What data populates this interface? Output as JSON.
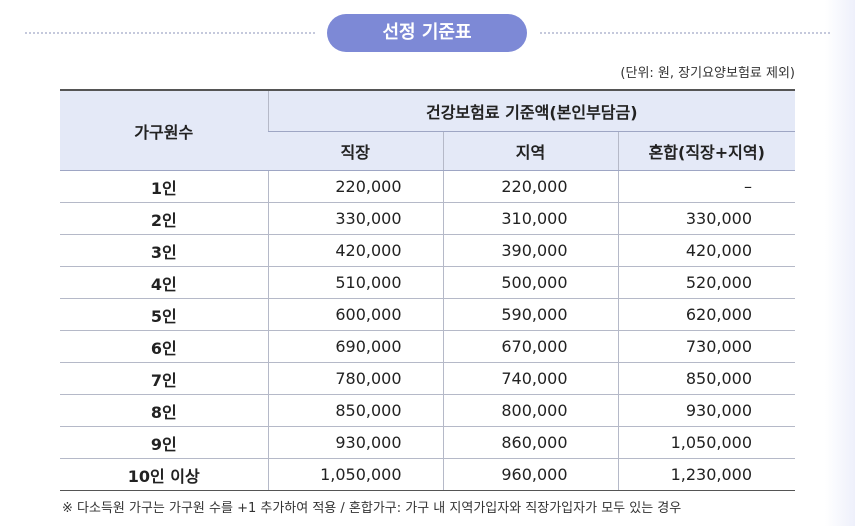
{
  "title": "선정 기준표",
  "unit_note": "(단위: 원, 장기요양보험료 제외)",
  "table": {
    "header": {
      "household": "가구원수",
      "group": "건강보험료 기준액(본인부담금)",
      "columns": [
        "직장",
        "지역",
        "혼합(직장+지역)"
      ]
    },
    "rows": [
      [
        "1인",
        "220,000",
        "220,000",
        "–"
      ],
      [
        "2인",
        "330,000",
        "310,000",
        "330,000"
      ],
      [
        "3인",
        "420,000",
        "390,000",
        "420,000"
      ],
      [
        "4인",
        "510,000",
        "500,000",
        "520,000"
      ],
      [
        "5인",
        "600,000",
        "590,000",
        "620,000"
      ],
      [
        "6인",
        "690,000",
        "670,000",
        "730,000"
      ],
      [
        "7인",
        "780,000",
        "740,000",
        "850,000"
      ],
      [
        "8인",
        "850,000",
        "800,000",
        "930,000"
      ],
      [
        "9인",
        "930,000",
        "860,000",
        "1,050,000"
      ],
      [
        "10인 이상",
        "1,050,000",
        "960,000",
        "1,230,000"
      ]
    ]
  },
  "footnote": "※ 다소득원 가구는 가구원 수를 +1 추가하여 적용 / 혼합가구: 가구 내 지역가입자와 직장가입자가 모두 있는 경우"
}
